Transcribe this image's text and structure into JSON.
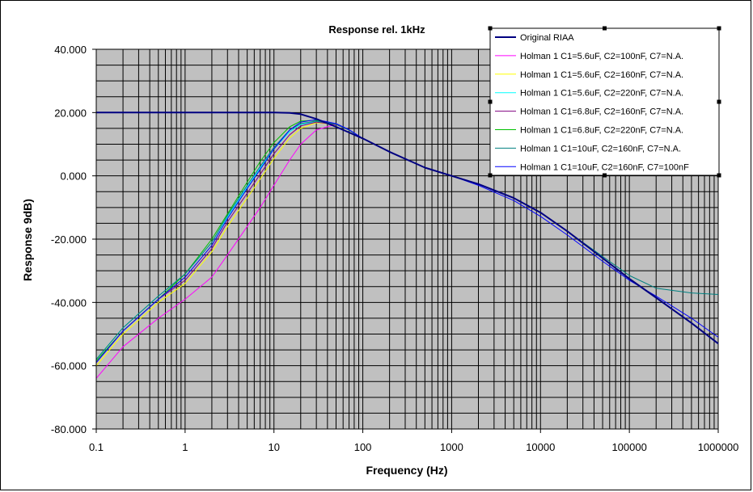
{
  "chart_data": {
    "type": "line",
    "title": "Response rel. 1kHz",
    "xlabel": "Frequency (Hz)",
    "ylabel": "Response 9dB)",
    "x_scale": "log",
    "xlim": [
      0.1,
      1000000
    ],
    "ylim": [
      -80,
      40
    ],
    "x_ticks": [
      "0.1",
      "1",
      "10",
      "100",
      "1000",
      "10000",
      "100000",
      "1000000"
    ],
    "y_ticks": [
      "40.000",
      "20.000",
      "0.000",
      "-20.000",
      "-40.000",
      "-60.000",
      "-80.000"
    ],
    "grid": true,
    "legend_position": "top-right",
    "plot_background": "#c0c0c0",
    "x": [
      0.1,
      0.2,
      0.5,
      1,
      2,
      3,
      5,
      7,
      10,
      15,
      20,
      30,
      50,
      70,
      100,
      200,
      500,
      1000,
      2000,
      5000,
      10000,
      20000,
      50000,
      100000,
      200000,
      500000,
      1000000
    ],
    "series": [
      {
        "name": "Original RIAA",
        "color": "#000080",
        "values": [
          20,
          20,
          20,
          20,
          20,
          20,
          20,
          20,
          20,
          19.9,
          19.5,
          18,
          15.5,
          13.7,
          11.8,
          7.6,
          2.6,
          0,
          -2.6,
          -7,
          -11.6,
          -17.5,
          -26,
          -32.5,
          -38.5,
          -46.5,
          -53
        ]
      },
      {
        "name": "Holman 1 C1=5.6uF, C2=100nF, C7=N.A.",
        "color": "#ff00ff",
        "values": [
          -64,
          -54,
          -45,
          -39,
          -32,
          -25,
          -16,
          -10,
          -3,
          5,
          10,
          14.5,
          16.3,
          14.6,
          11.8,
          7.6,
          2.6,
          0,
          -2.6,
          -7,
          -11.6,
          -17.5,
          -26,
          -32.5,
          -38.5,
          -46.5,
          -53
        ]
      },
      {
        "name": "Holman 1 C1=5.6uF, C2=160nF, C7=N.A.",
        "color": "#ffff00",
        "values": [
          -60,
          -50,
          -40,
          -34,
          -24,
          -16,
          -7,
          -1,
          5.5,
          12,
          15,
          16.8,
          16.2,
          14.5,
          11.8,
          7.6,
          2.6,
          0,
          -2.6,
          -7,
          -11.6,
          -17.5,
          -26,
          -32.5,
          -38.5,
          -46.5,
          -53
        ]
      },
      {
        "name": "Holman 1 C1=5.6uF, C2=220nF, C7=N.A.",
        "color": "#00ffff",
        "values": [
          -58,
          -48,
          -38,
          -31,
          -21,
          -13,
          -3.5,
          2.5,
          8.5,
          14,
          16.2,
          17.2,
          16.3,
          14.5,
          11.8,
          7.6,
          2.6,
          0,
          -2.6,
          -7,
          -11.6,
          -17.5,
          -26,
          -32.5,
          -38.5,
          -46.5,
          -53
        ]
      },
      {
        "name": "Holman 1 C1=6.8uF, C2=160nF, C7=N.A.",
        "color": "#800080",
        "values": [
          -59,
          -49,
          -39,
          -33,
          -23,
          -14.5,
          -5.5,
          0.5,
          7,
          13,
          15.8,
          17,
          16.2,
          14.5,
          11.8,
          7.6,
          2.6,
          0,
          -2.6,
          -7,
          -11.6,
          -17.5,
          -26,
          -32.5,
          -38.5,
          -46.5,
          -53
        ]
      },
      {
        "name": "Holman 1 C1=6.8uF, C2=220nF, C7=N.A.",
        "color": "#00c000",
        "values": [
          -58.5,
          -49,
          -39,
          -31,
          -20,
          -12,
          -2,
          4.5,
          10.5,
          15.5,
          17.3,
          17.6,
          16.4,
          14.5,
          11.8,
          7.6,
          2.6,
          0,
          -2.6,
          -7,
          -11.6,
          -17.5,
          -26,
          -32.5,
          -38.5,
          -46.5,
          -53
        ]
      },
      {
        "name": "Holman 1 C1=10uF, C2=160nF, C7=N.A.",
        "color": "#008080",
        "values": [
          -58,
          -48,
          -38,
          -31,
          -21,
          -12.5,
          -3,
          3,
          9,
          14.5,
          16.5,
          17.3,
          16.3,
          14.5,
          11.8,
          7.6,
          2.6,
          0,
          -2.6,
          -7,
          -11.6,
          -17.5,
          -25.5,
          -31.5,
          -35.5,
          -37,
          -37.5
        ]
      },
      {
        "name": "Holman 1 C1=10uF, C2=160nF, C7=100nF",
        "color": "#0000ff",
        "values": [
          -59,
          -49,
          -39,
          -32,
          -22,
          -13.5,
          -4,
          2,
          8.5,
          14.5,
          17,
          17.8,
          16.5,
          14.6,
          11.8,
          7.6,
          2.6,
          0,
          -3,
          -7.8,
          -12.8,
          -18.7,
          -27,
          -33,
          -38,
          -45,
          -51
        ]
      }
    ]
  }
}
